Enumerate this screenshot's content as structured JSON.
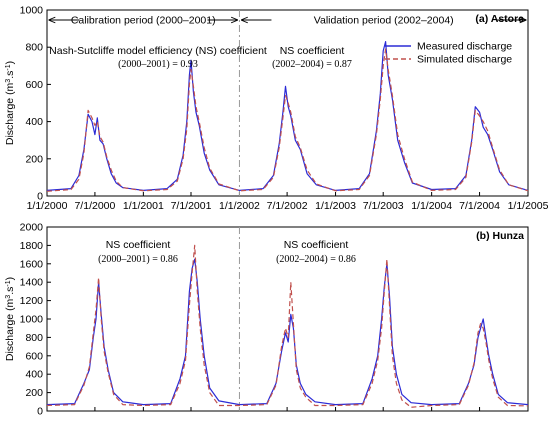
{
  "colors": {
    "measured": "#2b2bd6",
    "simulated": "#c0504d"
  },
  "chart_data": [
    {
      "id": "astore",
      "type": "line",
      "title": "(a) Astore",
      "ylabel": "Discharge (m3.s-1)",
      "ylim": [
        0,
        1000
      ],
      "yticks": [
        "0",
        "200",
        "400",
        "600",
        "800",
        "1000"
      ],
      "xlim": [
        "2000-01-01",
        "2005-01-01"
      ],
      "xticks": [
        "1/1/2000",
        "7/1/2000",
        "1/1/2001",
        "7/1/2001",
        "1/1/2002",
        "7/1/2002",
        "1/1/2003",
        "7/1/2003",
        "1/1/2004",
        "7/1/2004",
        "1/1/2005"
      ],
      "period_divider": "1/1/2002",
      "period_labels": [
        "Calibration period (2000–2001)",
        "Validation period (2002–2004)"
      ],
      "annotations": [
        {
          "line1": "Nash-Sutcliffe model efficiency (NS) coefficient",
          "line2": "(2000–2001) = 0.93"
        },
        {
          "line1": "NS coefficient",
          "line2": "(2002–2004) = 0.87"
        }
      ],
      "legend": {
        "position": "top-right",
        "entries": [
          "Measured discharge",
          "Simulated discharge"
        ]
      },
      "series": [
        {
          "name": "Measured discharge",
          "style": "solid",
          "x": [
            "2000-01-01",
            "2000-04-01",
            "2000-05-01",
            "2000-05-20",
            "2000-06-05",
            "2000-06-20",
            "2000-07-01",
            "2000-07-10",
            "2000-07-20",
            "2000-08-01",
            "2000-08-15",
            "2000-09-01",
            "2000-09-20",
            "2000-10-15",
            "2001-01-01",
            "2001-04-01",
            "2001-05-10",
            "2001-06-01",
            "2001-06-15",
            "2001-06-25",
            "2001-07-01",
            "2001-07-10",
            "2001-07-20",
            "2001-08-01",
            "2001-08-20",
            "2001-09-10",
            "2001-10-15",
            "2002-01-01",
            "2002-04-01",
            "2002-05-10",
            "2002-06-01",
            "2002-06-15",
            "2002-06-25",
            "2002-07-05",
            "2002-07-15",
            "2002-08-01",
            "2002-08-20",
            "2002-09-15",
            "2002-10-20",
            "2003-01-01",
            "2003-04-01",
            "2003-05-10",
            "2003-06-05",
            "2003-06-20",
            "2003-07-01",
            "2003-07-10",
            "2003-07-20",
            "2003-08-05",
            "2003-08-25",
            "2003-09-20",
            "2003-10-20",
            "2004-01-01",
            "2004-04-01",
            "2004-05-10",
            "2004-06-01",
            "2004-06-15",
            "2004-07-01",
            "2004-07-15",
            "2004-08-01",
            "2004-08-20",
            "2004-09-15",
            "2004-10-20",
            "2005-01-01"
          ],
          "y": [
            30,
            40,
            110,
            250,
            440,
            400,
            330,
            420,
            300,
            280,
            200,
            120,
            70,
            45,
            30,
            40,
            90,
            220,
            400,
            650,
            730,
            560,
            450,
            380,
            230,
            140,
            60,
            30,
            40,
            110,
            280,
            450,
            590,
            480,
            430,
            300,
            250,
            120,
            60,
            30,
            40,
            120,
            350,
            550,
            780,
            830,
            650,
            520,
            300,
            180,
            70,
            35,
            40,
            110,
            300,
            480,
            450,
            370,
            330,
            250,
            130,
            60,
            30
          ]
        },
        {
          "name": "Simulated discharge",
          "style": "dashed",
          "x": [
            "2000-01-01",
            "2000-04-01",
            "2000-05-01",
            "2000-05-20",
            "2000-06-05",
            "2000-06-20",
            "2000-07-01",
            "2000-07-10",
            "2000-07-20",
            "2000-08-01",
            "2000-08-15",
            "2000-09-01",
            "2000-09-20",
            "2000-10-15",
            "2001-01-01",
            "2001-04-01",
            "2001-05-10",
            "2001-06-01",
            "2001-06-15",
            "2001-06-25",
            "2001-07-01",
            "2001-07-10",
            "2001-07-20",
            "2001-08-01",
            "2001-08-20",
            "2001-09-10",
            "2001-10-15",
            "2002-01-01",
            "2002-04-01",
            "2002-05-10",
            "2002-06-01",
            "2002-06-15",
            "2002-06-25",
            "2002-07-05",
            "2002-07-15",
            "2002-08-01",
            "2002-08-20",
            "2002-09-15",
            "2002-10-20",
            "2003-01-01",
            "2003-04-01",
            "2003-05-10",
            "2003-06-05",
            "2003-06-20",
            "2003-07-01",
            "2003-07-10",
            "2003-07-20",
            "2003-08-05",
            "2003-08-25",
            "2003-09-20",
            "2003-10-20",
            "2004-01-01",
            "2004-04-01",
            "2004-05-10",
            "2004-06-01",
            "2004-06-15",
            "2004-07-01",
            "2004-07-15",
            "2004-08-01",
            "2004-08-20",
            "2004-09-15",
            "2004-10-20",
            "2005-01-01"
          ],
          "y": [
            25,
            35,
            90,
            230,
            460,
            420,
            380,
            400,
            320,
            290,
            210,
            140,
            80,
            45,
            28,
            35,
            80,
            200,
            360,
            600,
            680,
            590,
            480,
            400,
            260,
            150,
            65,
            28,
            35,
            100,
            260,
            420,
            540,
            500,
            450,
            320,
            260,
            140,
            65,
            28,
            35,
            110,
            330,
            520,
            700,
            790,
            680,
            540,
            330,
            200,
            75,
            30,
            35,
            100,
            290,
            460,
            430,
            400,
            350,
            260,
            140,
            60,
            28
          ]
        }
      ]
    },
    {
      "id": "hunza",
      "type": "line",
      "title": "(b) Hunza",
      "ylabel": "Discharge (m3.s-1)",
      "ylim": [
        0,
        2000
      ],
      "yticks": [
        "0",
        "200",
        "400",
        "600",
        "800",
        "1000",
        "1200",
        "1400",
        "1600",
        "1800",
        "2000"
      ],
      "xlim": [
        "2000-01-01",
        "2005-01-01"
      ],
      "period_divider": "1/1/2002",
      "annotations": [
        {
          "line1": "NS coefficient",
          "line2": "(2000–2001) = 0.86"
        },
        {
          "line1": "NS coefficient",
          "line2": "(2002–2004) = 0.86"
        }
      ],
      "series": [
        {
          "name": "Measured discharge",
          "style": "solid",
          "x": [
            "2000-01-01",
            "2000-04-15",
            "2000-05-20",
            "2000-06-10",
            "2000-06-25",
            "2000-07-05",
            "2000-07-15",
            "2000-07-25",
            "2000-08-05",
            "2000-08-20",
            "2000-09-10",
            "2000-10-15",
            "2001-01-01",
            "2001-04-15",
            "2001-05-20",
            "2001-06-10",
            "2001-06-25",
            "2001-07-05",
            "2001-07-15",
            "2001-07-25",
            "2001-08-05",
            "2001-08-20",
            "2001-09-10",
            "2001-10-15",
            "2002-01-01",
            "2002-04-15",
            "2002-05-20",
            "2002-06-10",
            "2002-06-25",
            "2002-07-05",
            "2002-07-15",
            "2002-07-25",
            "2002-08-05",
            "2002-08-20",
            "2002-09-10",
            "2002-10-15",
            "2003-01-01",
            "2003-04-15",
            "2003-05-20",
            "2003-06-10",
            "2003-06-25",
            "2003-07-05",
            "2003-07-15",
            "2003-07-25",
            "2003-08-05",
            "2003-08-20",
            "2003-09-10",
            "2003-10-15",
            "2004-01-01",
            "2004-04-15",
            "2004-05-20",
            "2004-06-10",
            "2004-06-25",
            "2004-07-05",
            "2004-07-15",
            "2004-07-25",
            "2004-08-05",
            "2004-08-20",
            "2004-09-10",
            "2004-10-15",
            "2005-01-01"
          ],
          "y": [
            70,
            80,
            300,
            450,
            800,
            1000,
            1400,
            1050,
            700,
            450,
            200,
            100,
            70,
            80,
            350,
            600,
            1300,
            1550,
            1650,
            1400,
            1000,
            600,
            250,
            110,
            70,
            80,
            300,
            650,
            850,
            750,
            1050,
            900,
            500,
            300,
            180,
            100,
            70,
            80,
            350,
            600,
            1000,
            1350,
            1600,
            1250,
            700,
            400,
            180,
            90,
            70,
            80,
            300,
            500,
            800,
            900,
            1000,
            800,
            600,
            400,
            180,
            90,
            70
          ]
        },
        {
          "name": "Simulated discharge",
          "style": "dashed",
          "x": [
            "2000-01-01",
            "2000-04-15",
            "2000-05-20",
            "2000-06-10",
            "2000-06-25",
            "2000-07-05",
            "2000-07-15",
            "2000-07-25",
            "2000-08-05",
            "2000-08-20",
            "2000-09-10",
            "2000-10-15",
            "2001-01-01",
            "2001-04-15",
            "2001-05-20",
            "2001-06-10",
            "2001-06-25",
            "2001-07-05",
            "2001-07-15",
            "2001-07-25",
            "2001-08-05",
            "2001-08-20",
            "2001-09-10",
            "2001-10-15",
            "2002-01-01",
            "2002-04-15",
            "2002-05-20",
            "2002-06-10",
            "2002-06-25",
            "2002-07-05",
            "2002-07-15",
            "2002-07-25",
            "2002-08-05",
            "2002-08-20",
            "2002-09-10",
            "2002-10-15",
            "2003-01-01",
            "2003-04-15",
            "2003-05-20",
            "2003-06-10",
            "2003-06-25",
            "2003-07-05",
            "2003-07-15",
            "2003-07-25",
            "2003-08-05",
            "2003-08-20",
            "2003-09-10",
            "2003-10-15",
            "2004-01-01",
            "2004-04-15",
            "2004-05-20",
            "2004-06-10",
            "2004-06-25",
            "2004-07-05",
            "2004-07-15",
            "2004-07-25",
            "2004-08-05",
            "2004-08-20",
            "2004-09-10",
            "2004-10-15",
            "2005-01-01"
          ],
          "y": [
            60,
            70,
            280,
            480,
            850,
            1100,
            1450,
            1000,
            650,
            420,
            180,
            70,
            60,
            70,
            300,
            550,
            1150,
            1500,
            1800,
            1300,
            900,
            500,
            200,
            60,
            60,
            70,
            280,
            700,
            900,
            800,
            1400,
            950,
            450,
            250,
            150,
            60,
            60,
            70,
            300,
            550,
            900,
            1300,
            1650,
            1150,
            600,
            300,
            120,
            40,
            60,
            70,
            280,
            520,
            850,
            950,
            900,
            750,
            550,
            350,
            150,
            60,
            55
          ]
        }
      ]
    }
  ]
}
